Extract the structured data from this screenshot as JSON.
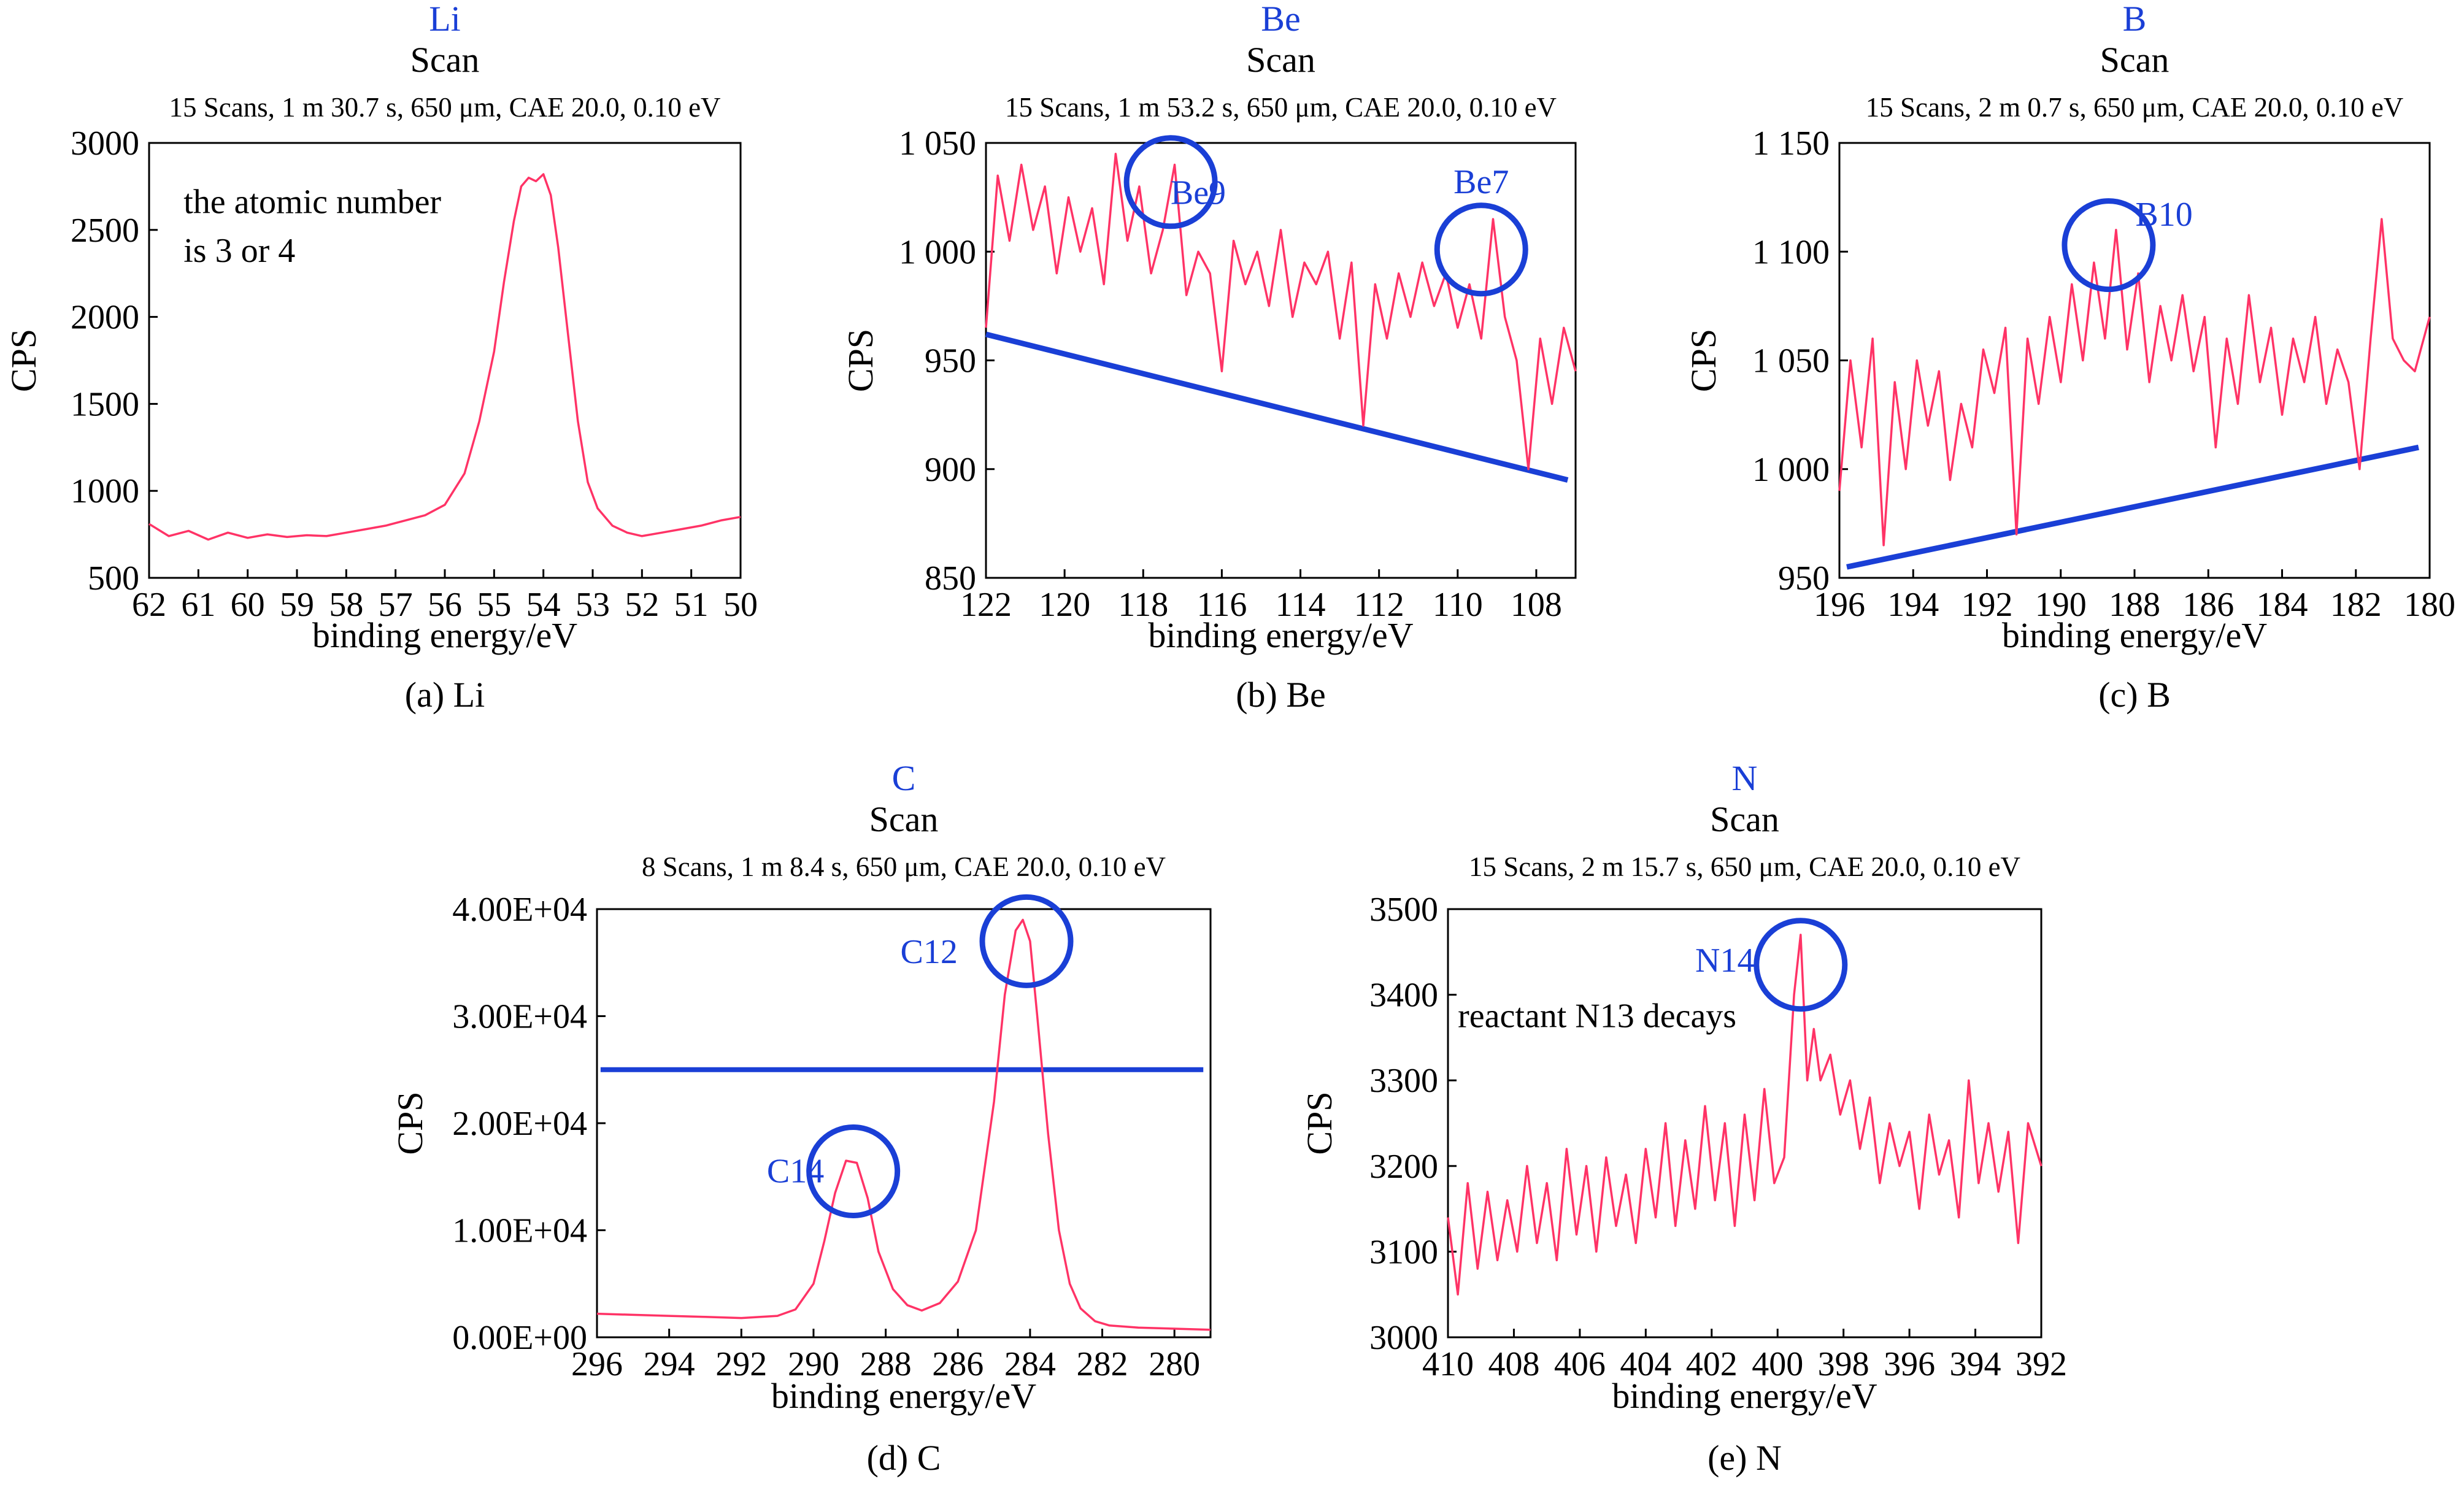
{
  "colors": {
    "series": "#ff3366",
    "annotation": "#1a3fd6",
    "title": "#1a3fd6",
    "text": "#000000",
    "axis": "#000000"
  },
  "chart_data": [
    {
      "type": "line",
      "element_title": "Li",
      "scan_title": "Scan",
      "info": "15 Scans, 1 m 30.7 s, 650 μm, CAE 20.0, 0.10 eV",
      "xlabel": "binding energy/eV",
      "ylabel": "CPS",
      "caption": "(a) Li",
      "xlim": [
        62,
        50
      ],
      "ylim": [
        500,
        3000
      ],
      "xticks": [
        62,
        61,
        60,
        59,
        58,
        57,
        56,
        55,
        54,
        53,
        52,
        51,
        50
      ],
      "xtick_labels": [
        "62",
        "61",
        "60",
        "59",
        "58",
        "57",
        "56",
        "55",
        "54",
        "53",
        "52",
        "51",
        "50"
      ],
      "yticks": [
        500,
        1000,
        1500,
        2000,
        2500,
        3000
      ],
      "ytick_labels": [
        "500",
        "1000",
        "1500",
        "2000",
        "2500",
        "3000"
      ],
      "series": [
        {
          "x": [
            62,
            61.6,
            61.2,
            60.8,
            60.4,
            60,
            59.6,
            59.2,
            58.8,
            58.4,
            58,
            57.6,
            57.2,
            56.8,
            56.4,
            56,
            55.6,
            55.3,
            55,
            54.8,
            54.6,
            54.45,
            54.3,
            54.15,
            54,
            53.85,
            53.7,
            53.5,
            53.3,
            53.1,
            52.9,
            52.6,
            52.3,
            52,
            51.6,
            51.2,
            50.8,
            50.4,
            50
          ],
          "y": [
            810,
            740,
            770,
            720,
            760,
            730,
            750,
            735,
            745,
            740,
            760,
            780,
            800,
            830,
            860,
            920,
            1100,
            1400,
            1800,
            2200,
            2550,
            2750,
            2800,
            2780,
            2820,
            2700,
            2400,
            1900,
            1400,
            1050,
            900,
            800,
            760,
            740,
            760,
            780,
            800,
            830,
            850
          ]
        }
      ],
      "annotations": [
        {
          "type": "text",
          "text": "the atomic number",
          "x": 61.3,
          "y": 2660,
          "color": "black"
        },
        {
          "type": "text",
          "text": "is 3 or 4",
          "x": 61.3,
          "y": 2380,
          "color": "black"
        }
      ]
    },
    {
      "type": "line",
      "element_title": "Be",
      "scan_title": "Scan",
      "info": "15 Scans, 1 m 53.2 s, 650 μm, CAE 20.0, 0.10 eV",
      "xlabel": "binding energy/eV",
      "ylabel": "CPS",
      "caption": "(b) Be",
      "xlim": [
        122,
        107
      ],
      "ylim": [
        850,
        1050
      ],
      "xticks": [
        122,
        120,
        118,
        116,
        114,
        112,
        110,
        108
      ],
      "xtick_labels": [
        "122",
        "120",
        "118",
        "116",
        "114",
        "112",
        "110",
        "108"
      ],
      "yticks": [
        850,
        900,
        950,
        1000,
        1050
      ],
      "ytick_labels": [
        "850",
        "900",
        "950",
        "1 000",
        "1 050"
      ],
      "series": [
        {
          "x": [
            122,
            121.7,
            121.4,
            121.1,
            120.8,
            120.5,
            120.2,
            119.9,
            119.6,
            119.3,
            119,
            118.7,
            118.4,
            118.1,
            117.8,
            117.5,
            117.2,
            116.9,
            116.6,
            116.3,
            116,
            115.7,
            115.4,
            115.1,
            114.8,
            114.5,
            114.2,
            113.9,
            113.6,
            113.3,
            113,
            112.7,
            112.4,
            112.1,
            111.8,
            111.5,
            111.2,
            110.9,
            110.6,
            110.3,
            110,
            109.7,
            109.4,
            109.1,
            108.8,
            108.5,
            108.2,
            107.9,
            107.6,
            107.3,
            107
          ],
          "y": [
            965,
            1035,
            1005,
            1040,
            1010,
            1030,
            990,
            1025,
            1000,
            1020,
            985,
            1045,
            1005,
            1030,
            990,
            1010,
            1040,
            980,
            1000,
            990,
            945,
            1005,
            985,
            1000,
            975,
            1010,
            970,
            995,
            985,
            1000,
            960,
            995,
            920,
            985,
            960,
            990,
            970,
            995,
            975,
            990,
            965,
            985,
            960,
            1015,
            970,
            950,
            900,
            960,
            930,
            965,
            945
          ]
        }
      ],
      "baseline": {
        "x": [
          122,
          107.2
        ],
        "y": [
          962,
          895
        ]
      },
      "annotations": [
        {
          "type": "circle",
          "label": "Be9",
          "x": 117.3,
          "y": 1032,
          "label_x": 116.6,
          "label_y": 1027
        },
        {
          "type": "circle",
          "label": "Be7",
          "x": 109.4,
          "y": 1001,
          "label_x": 109.4,
          "label_y": 1032
        }
      ]
    },
    {
      "type": "line",
      "element_title": "B",
      "scan_title": "Scan",
      "info": "15 Scans, 2 m 0.7 s, 650 μm, CAE 20.0, 0.10 eV",
      "xlabel": "binding energy/eV",
      "ylabel": "CPS",
      "caption": "(c) B",
      "xlim": [
        196,
        180
      ],
      "ylim": [
        950,
        1150
      ],
      "xticks": [
        196,
        194,
        192,
        190,
        188,
        186,
        184,
        182,
        180
      ],
      "xtick_labels": [
        "196",
        "194",
        "192",
        "190",
        "188",
        "186",
        "184",
        "182",
        "180"
      ],
      "yticks": [
        950,
        1000,
        1050,
        1100,
        1150
      ],
      "ytick_labels": [
        "950",
        "1 000",
        "1 050",
        "1 100",
        "1 150"
      ],
      "series": [
        {
          "x": [
            196,
            195.7,
            195.4,
            195.1,
            194.8,
            194.5,
            194.2,
            193.9,
            193.6,
            193.3,
            193,
            192.7,
            192.4,
            192.1,
            191.8,
            191.5,
            191.2,
            190.9,
            190.6,
            190.3,
            190,
            189.7,
            189.4,
            189.1,
            188.8,
            188.5,
            188.2,
            187.9,
            187.6,
            187.3,
            187,
            186.7,
            186.4,
            186.1,
            185.8,
            185.5,
            185.2,
            184.9,
            184.6,
            184.3,
            184,
            183.7,
            183.4,
            183.1,
            182.8,
            182.5,
            182.2,
            181.9,
            181.6,
            181.3,
            181,
            180.7,
            180.4,
            180
          ],
          "y": [
            990,
            1050,
            1010,
            1060,
            965,
            1040,
            1000,
            1050,
            1020,
            1045,
            995,
            1030,
            1010,
            1055,
            1035,
            1065,
            970,
            1060,
            1030,
            1070,
            1040,
            1085,
            1050,
            1095,
            1060,
            1110,
            1055,
            1090,
            1040,
            1075,
            1050,
            1080,
            1045,
            1070,
            1010,
            1060,
            1030,
            1080,
            1040,
            1065,
            1025,
            1060,
            1040,
            1070,
            1030,
            1055,
            1040,
            1000,
            1060,
            1115,
            1060,
            1050,
            1045,
            1070
          ]
        }
      ],
      "baseline": {
        "x": [
          195.8,
          180.3
        ],
        "y": [
          955,
          1010
        ]
      },
      "annotations": [
        {
          "type": "circle",
          "label": "B10",
          "x": 188.7,
          "y": 1103,
          "label_x": 187.2,
          "label_y": 1117
        }
      ]
    },
    {
      "type": "line",
      "element_title": "C",
      "scan_title": "Scan",
      "info": "8 Scans, 1 m 8.4 s, 650 μm, CAE 20.0, 0.10 eV",
      "xlabel": "binding energy/eV",
      "ylabel": "CPS",
      "caption": "(d) C",
      "xlim": [
        296,
        279
      ],
      "ylim": [
        0,
        40000
      ],
      "xticks": [
        296,
        294,
        292,
        290,
        288,
        286,
        284,
        282,
        280
      ],
      "xtick_labels": [
        "296",
        "294",
        "292",
        "290",
        "288",
        "286",
        "284",
        "282",
        "280"
      ],
      "yticks": [
        0,
        10000,
        20000,
        30000,
        40000
      ],
      "ytick_labels": [
        "0.00E+00",
        "1.00E+04",
        "2.00E+04",
        "3.00E+04",
        "4.00E+04"
      ],
      "series": [
        {
          "x": [
            296,
            295,
            294,
            293,
            292,
            291,
            290.5,
            290,
            289.7,
            289.4,
            289.1,
            288.8,
            288.5,
            288.2,
            287.8,
            287.4,
            287,
            286.5,
            286,
            285.5,
            285,
            284.7,
            284.4,
            284.2,
            284,
            283.8,
            283.5,
            283.2,
            282.9,
            282.6,
            282.2,
            281.8,
            281,
            280,
            279
          ],
          "y": [
            2200,
            2100,
            2000,
            1900,
            1800,
            2000,
            2600,
            5000,
            9000,
            13500,
            16500,
            16300,
            13000,
            8000,
            4500,
            3000,
            2500,
            3200,
            5200,
            10000,
            22000,
            32000,
            38000,
            39000,
            37000,
            30000,
            19000,
            10000,
            5000,
            2700,
            1500,
            1100,
            900,
            800,
            700
          ]
        }
      ],
      "hline": {
        "x": [
          295.9,
          279.2
        ],
        "y": 25000
      },
      "annotations": [
        {
          "type": "circle",
          "label": "C12",
          "x": 284.1,
          "y": 37000,
          "label_x": 286.8,
          "label_y": 36000
        },
        {
          "type": "circle",
          "label": "C14",
          "x": 288.9,
          "y": 15500,
          "label_x": 290.5,
          "label_y": 15500
        }
      ]
    },
    {
      "type": "line",
      "element_title": "N",
      "scan_title": "Scan",
      "info": "15 Scans, 2 m 15.7 s, 650 μm, CAE 20.0, 0.10 eV",
      "xlabel": "binding energy/eV",
      "ylabel": "CPS",
      "caption": "(e) N",
      "xlim": [
        410,
        392
      ],
      "ylim": [
        3000,
        3500
      ],
      "xticks": [
        410,
        408,
        406,
        404,
        402,
        400,
        398,
        396,
        394,
        392
      ],
      "xtick_labels": [
        "410",
        "408",
        "406",
        "404",
        "402",
        "400",
        "398",
        "396",
        "394",
        "392"
      ],
      "yticks": [
        3000,
        3100,
        3200,
        3300,
        3400,
        3500
      ],
      "ytick_labels": [
        "3000",
        "3100",
        "3200",
        "3300",
        "3400",
        "3500"
      ],
      "series": [
        {
          "x": [
            410,
            409.7,
            409.4,
            409.1,
            408.8,
            408.5,
            408.2,
            407.9,
            407.6,
            407.3,
            407,
            406.7,
            406.4,
            406.1,
            405.8,
            405.5,
            405.2,
            404.9,
            404.6,
            404.3,
            404,
            403.7,
            403.4,
            403.1,
            402.8,
            402.5,
            402.2,
            401.9,
            401.6,
            401.3,
            401,
            400.7,
            400.4,
            400.1,
            399.8,
            399.5,
            399.3,
            399.1,
            398.9,
            398.7,
            398.4,
            398.1,
            397.8,
            397.5,
            397.2,
            396.9,
            396.6,
            396.3,
            396,
            395.7,
            395.4,
            395.1,
            394.8,
            394.5,
            394.2,
            393.9,
            393.6,
            393.3,
            393,
            392.7,
            392.4,
            392
          ],
          "y": [
            3140,
            3050,
            3180,
            3080,
            3170,
            3090,
            3160,
            3100,
            3200,
            3110,
            3180,
            3090,
            3220,
            3120,
            3200,
            3100,
            3210,
            3130,
            3190,
            3110,
            3220,
            3140,
            3250,
            3130,
            3230,
            3150,
            3270,
            3160,
            3250,
            3130,
            3260,
            3160,
            3290,
            3180,
            3210,
            3400,
            3470,
            3300,
            3360,
            3300,
            3330,
            3260,
            3300,
            3220,
            3280,
            3180,
            3250,
            3200,
            3240,
            3150,
            3260,
            3190,
            3230,
            3140,
            3300,
            3180,
            3250,
            3170,
            3240,
            3110,
            3250,
            3200
          ]
        }
      ],
      "annotations": [
        {
          "type": "circle",
          "label": "N14",
          "x": 399.3,
          "y": 3435,
          "label_x": 401.6,
          "label_y": 3440
        },
        {
          "type": "text",
          "text": "reactant N13 decays",
          "x": 409.7,
          "y": 3375,
          "color": "black"
        }
      ]
    }
  ]
}
